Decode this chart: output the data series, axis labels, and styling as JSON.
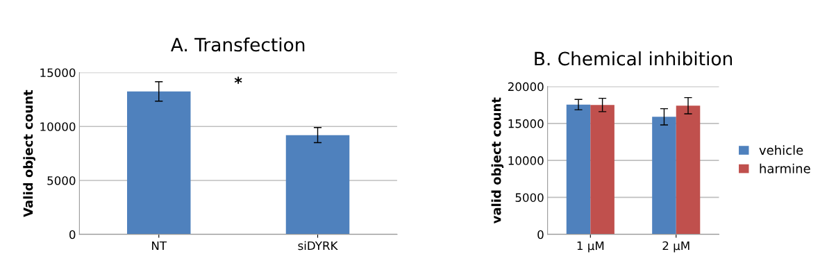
{
  "chart_data": [
    {
      "type": "bar",
      "title": "A. Transfection",
      "ylabel": "Valid object count",
      "categories": [
        "NT",
        "siDYRK"
      ],
      "values": [
        13250,
        9200
      ],
      "errors": [
        900,
        700
      ],
      "color": "#4f81bd",
      "ylim": [
        0,
        15000
      ],
      "yticks": [
        0,
        5000,
        10000,
        15000
      ],
      "grid": "y",
      "annotations": [
        "*"
      ]
    },
    {
      "type": "bar",
      "title": "B. Chemical inhibition",
      "ylabel": "valid object count",
      "categories": [
        "1 µM",
        "2 µM"
      ],
      "series": [
        {
          "name": "vehicle",
          "color": "#4f81bd",
          "values": [
            17550,
            15900
          ],
          "errors": [
            700,
            1100
          ]
        },
        {
          "name": "harmine",
          "color": "#c0504d",
          "values": [
            17500,
            17400
          ],
          "errors": [
            900,
            1100
          ]
        }
      ],
      "ylim": [
        0,
        20000
      ],
      "yticks": [
        0,
        5000,
        10000,
        15000,
        20000
      ],
      "grid": "y",
      "legend": "right"
    }
  ]
}
